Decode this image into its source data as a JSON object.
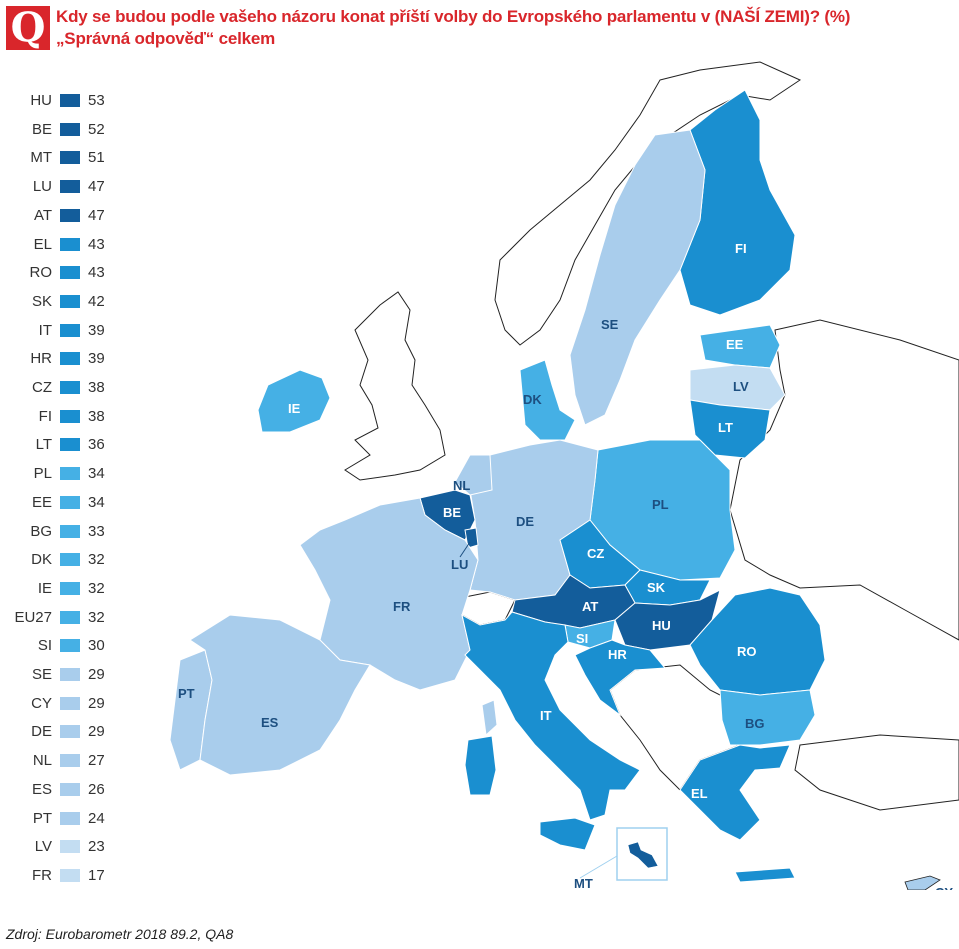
{
  "title_line1": "Kdy se budou podle vašeho názoru konat příští volby do Evropského parlamentu v (NAŠÍ ZEMI)? (%)",
  "title_line2": "„Správná odpověď“ celkem",
  "q_letter": "Q",
  "source": "Zdroj: Eurobarometr 2018 89.2, QA8",
  "colors": {
    "c1": "#135d9b",
    "c2": "#1a8fd0",
    "c3": "#45b0e5",
    "c4": "#a9cdec",
    "c5": "#c3ddf2",
    "title": "#d9262b"
  },
  "legend": [
    {
      "code": "HU",
      "value": "53",
      "color": "#135d9b"
    },
    {
      "code": "BE",
      "value": "52",
      "color": "#135d9b"
    },
    {
      "code": "MT",
      "value": "51",
      "color": "#135d9b"
    },
    {
      "code": "LU",
      "value": "47",
      "color": "#135d9b"
    },
    {
      "code": "AT",
      "value": "47",
      "color": "#135d9b"
    },
    {
      "code": "EL",
      "value": "43",
      "color": "#1a8fd0"
    },
    {
      "code": "RO",
      "value": "43",
      "color": "#1a8fd0"
    },
    {
      "code": "SK",
      "value": "42",
      "color": "#1a8fd0"
    },
    {
      "code": "IT",
      "value": "39",
      "color": "#1a8fd0"
    },
    {
      "code": "HR",
      "value": "39",
      "color": "#1a8fd0"
    },
    {
      "code": "CZ",
      "value": "38",
      "color": "#1a8fd0"
    },
    {
      "code": "FI",
      "value": "38",
      "color": "#1a8fd0"
    },
    {
      "code": "LT",
      "value": "36",
      "color": "#1a8fd0"
    },
    {
      "code": "PL",
      "value": "34",
      "color": "#45b0e5"
    },
    {
      "code": "EE",
      "value": "34",
      "color": "#45b0e5"
    },
    {
      "code": "BG",
      "value": "33",
      "color": "#45b0e5"
    },
    {
      "code": "DK",
      "value": "32",
      "color": "#45b0e5"
    },
    {
      "code": "IE",
      "value": "32",
      "color": "#45b0e5"
    },
    {
      "code": "EU27",
      "value": "32",
      "color": "#45b0e5"
    },
    {
      "code": "SI",
      "value": "30",
      "color": "#45b0e5"
    },
    {
      "code": "SE",
      "value": "29",
      "color": "#a9cdec"
    },
    {
      "code": "CY",
      "value": "29",
      "color": "#a9cdec"
    },
    {
      "code": "DE",
      "value": "29",
      "color": "#a9cdec"
    },
    {
      "code": "NL",
      "value": "27",
      "color": "#a9cdec"
    },
    {
      "code": "ES",
      "value": "26",
      "color": "#a9cdec"
    },
    {
      "code": "PT",
      "value": "24",
      "color": "#a9cdec"
    },
    {
      "code": "LV",
      "value": "23",
      "color": "#c3ddf2"
    },
    {
      "code": "FR",
      "value": "17",
      "color": "#c3ddf2"
    }
  ],
  "map_labels": {
    "FI": "FI",
    "SE": "SE",
    "EE": "EE",
    "LV": "LV",
    "LT": "LT",
    "DK": "DK",
    "IE": "IE",
    "NL": "NL",
    "BE": "BE",
    "LU": "LU",
    "DE": "DE",
    "PL": "PL",
    "CZ": "CZ",
    "SK": "SK",
    "AT": "AT",
    "HU": "HU",
    "SI": "SI",
    "HR": "HR",
    "RO": "RO",
    "BG": "BG",
    "FR": "FR",
    "PT": "PT",
    "ES": "ES",
    "IT": "IT",
    "EL": "EL",
    "MT": "MT",
    "CY": "CY"
  }
}
